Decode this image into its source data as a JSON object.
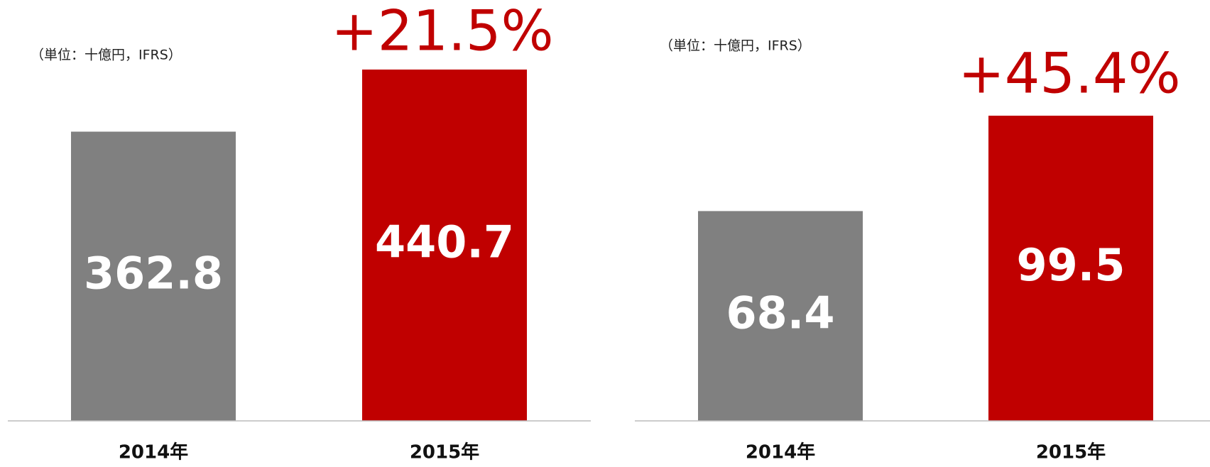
{
  "chart_data": [
    {
      "type": "bar",
      "subtitle": "（単位：十億円，IFRS）",
      "annotation": "+21.5%",
      "categories": [
        "2014年",
        "2015年"
      ],
      "values": [
        362.8,
        440.7
      ],
      "colors": [
        "#808080",
        "#c00000"
      ]
    },
    {
      "type": "bar",
      "subtitle": "（単位：十億円，IFRS）",
      "annotation": "+45.4%",
      "categories": [
        "2014年",
        "2015年"
      ],
      "values": [
        68.4,
        99.5
      ],
      "colors": [
        "#808080",
        "#c00000"
      ]
    }
  ]
}
